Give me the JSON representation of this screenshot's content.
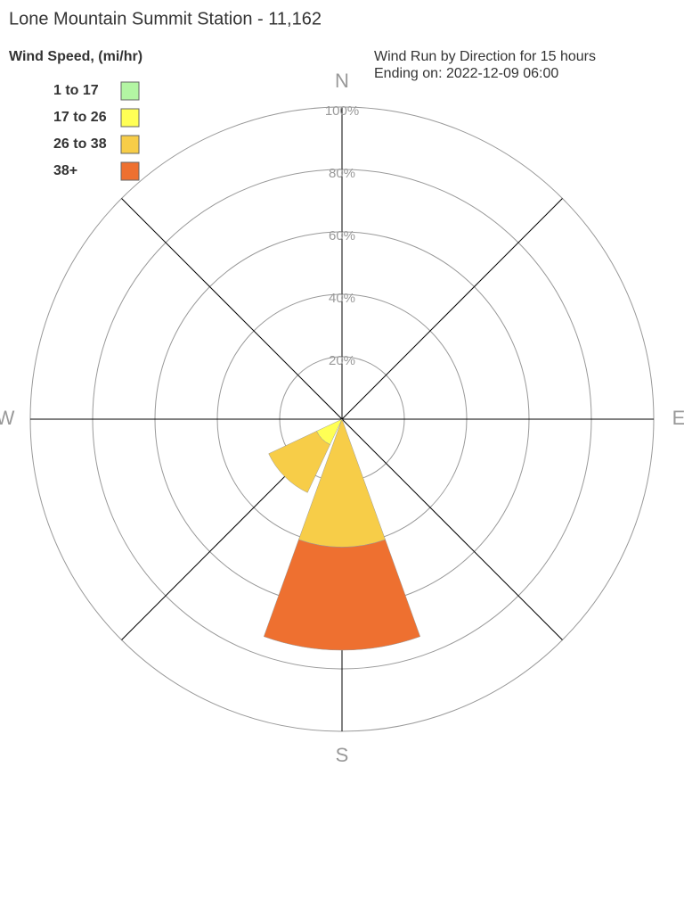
{
  "chart_data": {
    "type": "wind_rose",
    "title": "Lone Mountain Summit Station - 11,162",
    "legend_title": "Wind Speed, (mi/hr)",
    "subtitle": [
      "Wind Run by Direction for 15 hours",
      "Ending on: 2022-12-09 06:00"
    ],
    "categories": [
      "N",
      null,
      "E",
      null,
      "S",
      null,
      "W",
      null
    ],
    "series": [
      {
        "name": "1 to 17",
        "color": "#b3f5a3",
        "values": [
          0,
          0,
          0,
          0,
          0,
          0,
          0,
          0
        ]
      },
      {
        "name": "17 to 26",
        "color": "#ffff55",
        "values": [
          0,
          0,
          0,
          0,
          0,
          9,
          0,
          0
        ]
      },
      {
        "name": "26 to 38",
        "color": "#f7cd48",
        "values": [
          0,
          0,
          0,
          0,
          41,
          17,
          0,
          0
        ]
      },
      {
        "name": "38+",
        "color": "#ee7030",
        "values": [
          0,
          0,
          0,
          0,
          33,
          0,
          0,
          0
        ]
      }
    ],
    "rlim": [
      0,
      100
    ],
    "rticks": [
      {
        "value": 20,
        "label": "20%"
      },
      {
        "value": 40,
        "label": "40%"
      },
      {
        "value": 60,
        "label": "60%"
      },
      {
        "value": 80,
        "label": "80%"
      },
      {
        "value": 100,
        "label": "100%"
      }
    ]
  }
}
